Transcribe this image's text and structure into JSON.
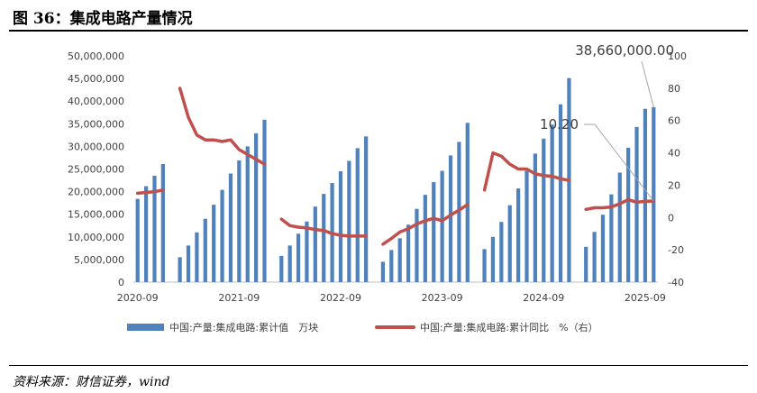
{
  "header": {
    "title": "图 36：集成电路产量情况"
  },
  "footer": {
    "source": "资料来源：财信证券，wind"
  },
  "chart_data": {
    "type": "bar",
    "x_ticks": [
      "2020-09",
      "2021-09",
      "2022-09",
      "2023-09",
      "2024-09",
      "2025-09"
    ],
    "y_left": {
      "min": 0,
      "max": 50000000,
      "step": 5000000,
      "tick_labels": [
        "0",
        "5,000,000",
        "10,000,000",
        "15,000,000",
        "20,000,000",
        "25,000,000",
        "30,000,000",
        "35,000,000",
        "40,000,000",
        "45,000,000",
        "50,000,000"
      ]
    },
    "y_right": {
      "min": -40,
      "max": 100,
      "step": 20,
      "tick_labels": [
        "-40",
        "-20",
        "0",
        "20",
        "40",
        "60",
        "80",
        "100"
      ]
    },
    "series": [
      {
        "name": "中国:产量:集成电路:累计值　万块",
        "type": "bar",
        "color": "#4F81BD",
        "values": [
          18400000,
          21200000,
          23500000,
          26100000,
          null,
          5500000,
          8100000,
          11000000,
          14000000,
          17100000,
          20400000,
          24000000,
          26900000,
          30000000,
          32900000,
          35900000,
          null,
          5800000,
          8100000,
          10700000,
          13400000,
          16700000,
          19500000,
          21900000,
          24500000,
          26800000,
          29600000,
          32200000,
          null,
          4500000,
          7100000,
          9700000,
          12700000,
          16200000,
          19300000,
          22100000,
          24600000,
          28000000,
          31000000,
          35200000,
          null,
          7300000,
          10000000,
          13300000,
          17000000,
          20700000,
          24600000,
          28400000,
          31700000,
          34800000,
          39300000,
          45100000,
          null,
          7800000,
          11100000,
          14900000,
          19400000,
          24200000,
          29700000,
          34300000,
          38300000,
          38660000
        ]
      },
      {
        "name": "中国:产量:集成电路:累计同比　%（右）",
        "type": "line",
        "color": "#C0504D",
        "values": [
          15,
          15.5,
          16,
          17,
          null,
          80,
          62,
          51,
          48,
          48,
          47,
          48,
          42,
          39,
          36,
          33,
          null,
          -1,
          -5,
          -6,
          -6.5,
          -7.5,
          -8,
          -10,
          -11,
          -11.5,
          -11.5,
          -11.5,
          null,
          -16.5,
          -13,
          -9,
          -7,
          -4,
          -2,
          -0.5,
          -2,
          1.5,
          4.5,
          8,
          null,
          17,
          40,
          38,
          33,
          30,
          30,
          27,
          26,
          25.5,
          24,
          23,
          null,
          5,
          6,
          6,
          6.5,
          8.5,
          11,
          9.5,
          10,
          10.2
        ]
      }
    ],
    "annotations": [
      {
        "text": "38,660,000.00"
      },
      {
        "text": "10.20"
      }
    ],
    "legend_position": "bottom",
    "grid": false
  }
}
